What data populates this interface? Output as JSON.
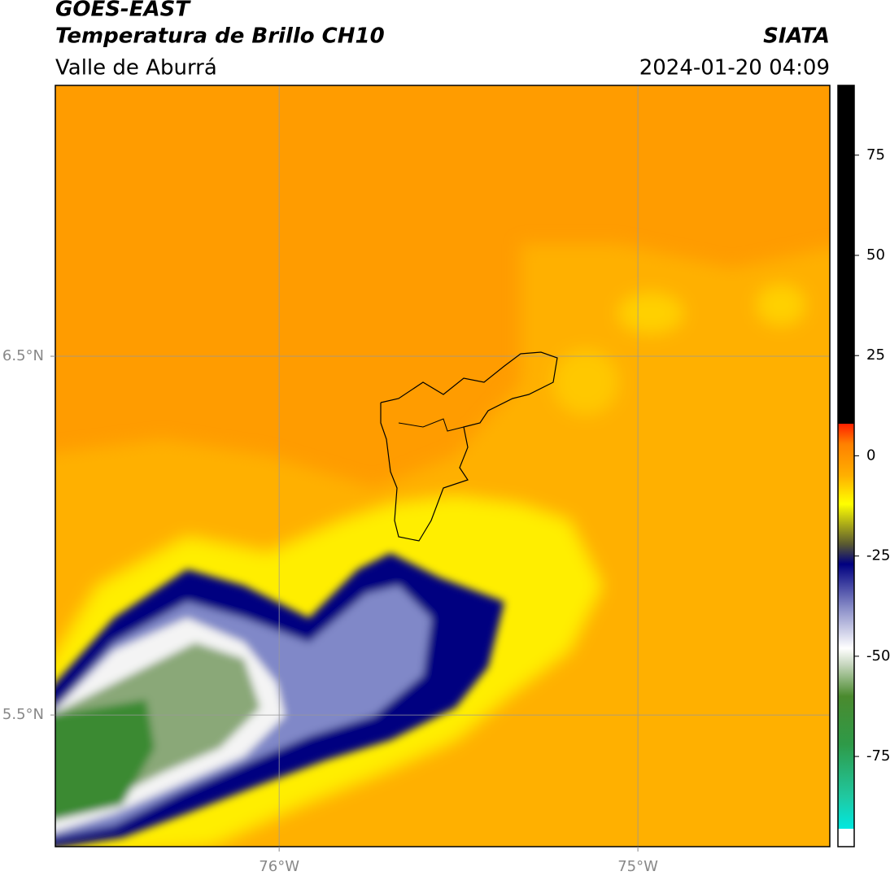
{
  "header": {
    "title": "GOES-EAST",
    "subtitle": "Temperatura de Brillo CH10",
    "region": "Valle de Aburrá",
    "source": "SIATA",
    "datetime": "2024-01-20 04:09"
  },
  "map": {
    "xlim": [
      -76.624,
      -74.465
    ],
    "ylim": [
      5.133,
      7.255
    ],
    "xticks": [
      {
        "value": -76,
        "label": "76°W"
      },
      {
        "value": -75,
        "label": "75°W"
      }
    ],
    "yticks": [
      {
        "value": 6.5,
        "label": "6.5°N"
      },
      {
        "value": 5.5,
        "label": "5.5°N"
      }
    ],
    "grid": true
  },
  "colorbar": {
    "lim": [
      -97.5,
      92.4
    ],
    "ticks": [
      75,
      50,
      25,
      0,
      -25,
      -50,
      -75
    ],
    "colormap": [
      {
        "value": -97.5,
        "color": "#ffffff"
      },
      {
        "value": -93,
        "color": "#ffffff"
      },
      {
        "value": -93,
        "color": "#00e8e0"
      },
      {
        "value": -85,
        "color": "#20c8a0"
      },
      {
        "value": -72,
        "color": "#2e9a48"
      },
      {
        "value": -60,
        "color": "#4a8a2e"
      },
      {
        "value": -52,
        "color": "#c8d8c0"
      },
      {
        "value": -48,
        "color": "#ffffff"
      },
      {
        "value": -38,
        "color": "#8a8ec8"
      },
      {
        "value": -27,
        "color": "#000080"
      },
      {
        "value": -22,
        "color": "#5a5a30"
      },
      {
        "value": -12,
        "color": "#ffff00"
      },
      {
        "value": -5,
        "color": "#ffb000"
      },
      {
        "value": 3,
        "color": "#ff8000"
      },
      {
        "value": 8,
        "color": "#ff2000"
      },
      {
        "value": 8,
        "color": "#000000"
      },
      {
        "value": 92.4,
        "color": "#000000"
      }
    ]
  }
}
